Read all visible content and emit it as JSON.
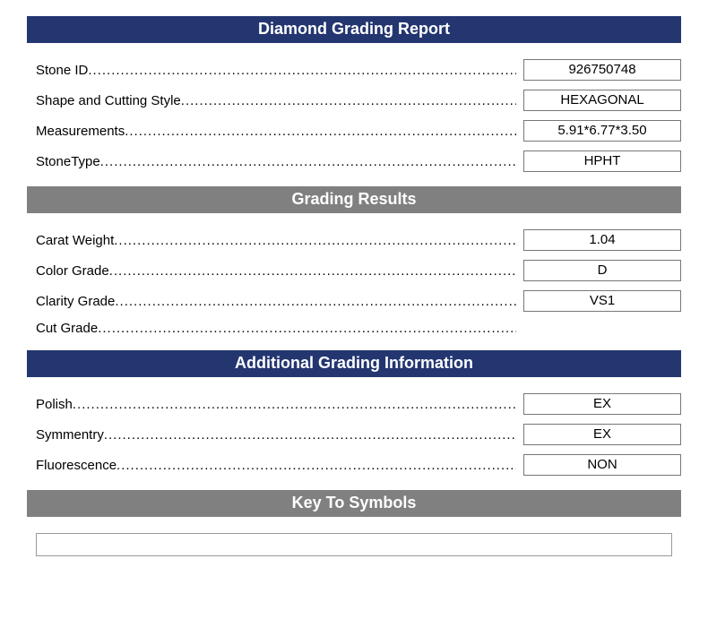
{
  "colors": {
    "navy": "#233670",
    "gray": "#808080"
  },
  "sections": [
    {
      "title": "Diamond Grading Report",
      "header_bg_key": "navy",
      "rows": [
        {
          "label": "Stone ID",
          "value": "926750748"
        },
        {
          "label": "Shape and Cutting Style",
          "value": "HEXAGONAL"
        },
        {
          "label": "Measurements",
          "value": "5.91*6.77*3.50"
        },
        {
          "label": "StoneType",
          "value": "HPHT"
        }
      ]
    },
    {
      "title": "Grading Results",
      "header_bg_key": "gray",
      "rows": [
        {
          "label": "Carat Weight",
          "value": "1.04"
        },
        {
          "label": "Color Grade",
          "value": "D"
        },
        {
          "label": "Clarity Grade",
          "value": "VS1"
        },
        {
          "label": "Cut Grade",
          "value": ""
        }
      ]
    },
    {
      "title": "Additional Grading Information",
      "header_bg_key": "navy",
      "rows": [
        {
          "label": "Polish",
          "value": "EX"
        },
        {
          "label": "Symmentry",
          "value": "EX"
        },
        {
          "label": "Fluorescence",
          "value": "NON"
        }
      ]
    }
  ],
  "key_to_symbols": {
    "title": "Key To Symbols",
    "header_bg_key": "gray"
  }
}
